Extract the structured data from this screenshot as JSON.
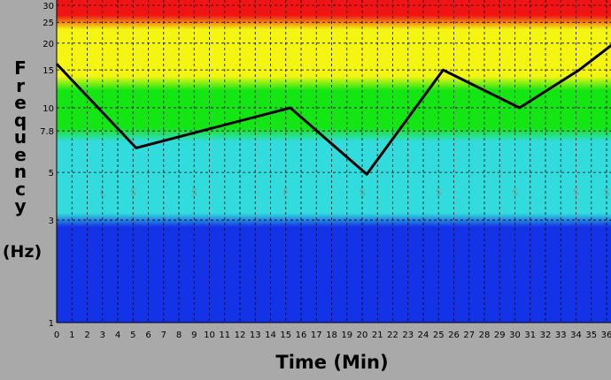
{
  "chart_data": {
    "type": "line",
    "ylabel": "Frequency",
    "ylabel_unit": "(Hz)",
    "xlabel": "Time (Min)",
    "y_scale": "log",
    "ylim": [
      1,
      30
    ],
    "xlim": [
      0,
      36.5
    ],
    "x_ticks": [
      0,
      1,
      2,
      3,
      4,
      5,
      6,
      7,
      8,
      9,
      10,
      11,
      12,
      13,
      14,
      15,
      16,
      17,
      18,
      19,
      20,
      21,
      22,
      23,
      24,
      25,
      26,
      27,
      28,
      29,
      30,
      31,
      32,
      33,
      34,
      35,
      36
    ],
    "y_ticks": [
      1,
      3,
      5,
      7.8,
      10,
      15,
      20,
      25,
      30
    ],
    "grid": true,
    "bands": [
      {
        "from": 1,
        "to": 3,
        "color": "#1432e6"
      },
      {
        "from": 3,
        "to": 7.5,
        "color": "#32dcdc"
      },
      {
        "from": 7.5,
        "to": 13,
        "color": "#14e614"
      },
      {
        "from": 13,
        "to": 25,
        "color": "#f5f514"
      },
      {
        "from": 25,
        "to": 30,
        "color": "#f01414"
      }
    ],
    "series": [
      {
        "color": "#000000",
        "points": [
          [
            0,
            16
          ],
          [
            5.2,
            6.5
          ],
          [
            15.3,
            10
          ],
          [
            20.3,
            4.9
          ],
          [
            25.3,
            15
          ],
          [
            30.3,
            10
          ],
          [
            34.2,
            15
          ],
          [
            36.5,
            20
          ]
        ]
      }
    ],
    "markers": [
      {
        "x": 3,
        "y": 4,
        "label": "L"
      },
      {
        "x": 5,
        "y": 4,
        "label": "S"
      },
      {
        "x": 9,
        "y": 4,
        "label": "S"
      },
      {
        "x": 15,
        "y": 4,
        "label": "F"
      },
      {
        "x": 20,
        "y": 4,
        "label": "S"
      },
      {
        "x": 25,
        "y": 4,
        "label": "S"
      },
      {
        "x": 30,
        "y": 4,
        "label": "S"
      },
      {
        "x": 34,
        "y": 4,
        "label": "S"
      },
      {
        "x": 36,
        "y": 4,
        "label": "S"
      }
    ]
  }
}
